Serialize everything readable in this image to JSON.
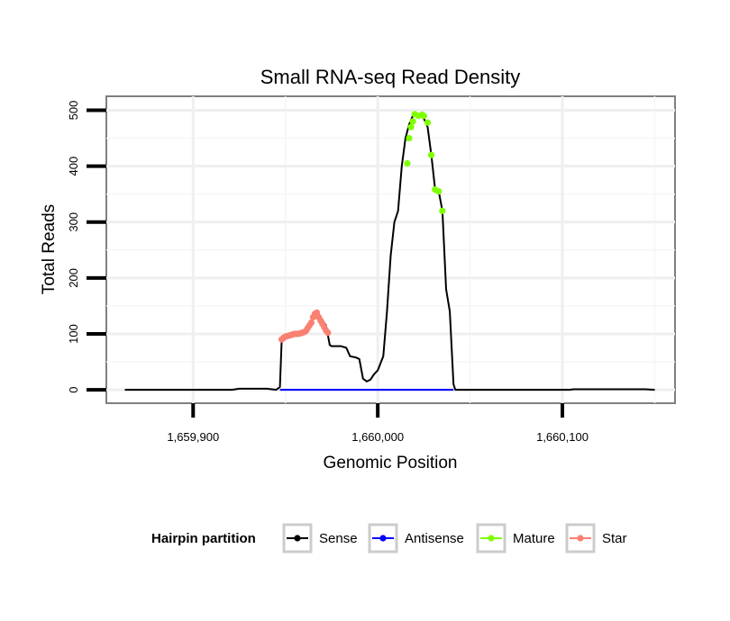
{
  "chart_data": {
    "type": "line",
    "title": "Small RNA-seq Read Density",
    "xlabel": "Genomic Position",
    "ylabel": "Total Reads",
    "xlim": [
      1659853,
      1660161
    ],
    "ylim": [
      -24,
      525
    ],
    "x_ticks": [
      {
        "value": 1659900,
        "label": "1,659,900"
      },
      {
        "value": 1660000,
        "label": "1,660,000"
      },
      {
        "value": 1660100,
        "label": "1,660,100"
      }
    ],
    "y_ticks": [
      {
        "value": 0,
        "label": "0"
      },
      {
        "value": 100,
        "label": "100"
      },
      {
        "value": 200,
        "label": "200"
      },
      {
        "value": 300,
        "label": "300"
      },
      {
        "value": 400,
        "label": "400"
      },
      {
        "value": 500,
        "label": "500"
      }
    ],
    "grid": true,
    "legend": {
      "title": "Hairpin partition",
      "position": "bottom",
      "entries": [
        {
          "label": "Sense",
          "color": "#000000"
        },
        {
          "label": "Antisense",
          "color": "#0000ff"
        },
        {
          "label": "Mature",
          "color": "#7fff00"
        },
        {
          "label": "Star",
          "color": "#fa8072"
        }
      ]
    },
    "series": [
      {
        "name": "Sense",
        "color": "#000000",
        "kind": "line",
        "points": [
          [
            1659863,
            0
          ],
          [
            1659878,
            0
          ],
          [
            1659893,
            0
          ],
          [
            1659908,
            0
          ],
          [
            1659921,
            0
          ],
          [
            1659925,
            2
          ],
          [
            1659940,
            2
          ],
          [
            1659945,
            0
          ],
          [
            1659947,
            5
          ],
          [
            1659948,
            90
          ],
          [
            1659950,
            95
          ],
          [
            1659955,
            100
          ],
          [
            1659960,
            103
          ],
          [
            1659963,
            115
          ],
          [
            1659965,
            128
          ],
          [
            1659967,
            138
          ],
          [
            1659970,
            125
          ],
          [
            1659972,
            115
          ],
          [
            1659974,
            80
          ],
          [
            1659975,
            78
          ],
          [
            1659980,
            78
          ],
          [
            1659983,
            75
          ],
          [
            1659985,
            60
          ],
          [
            1659988,
            58
          ],
          [
            1659990,
            55
          ],
          [
            1659992,
            20
          ],
          [
            1659994,
            15
          ],
          [
            1659996,
            18
          ],
          [
            1659998,
            28
          ],
          [
            1660000,
            35
          ],
          [
            1660003,
            60
          ],
          [
            1660005,
            140
          ],
          [
            1660007,
            240
          ],
          [
            1660009,
            300
          ],
          [
            1660011,
            320
          ],
          [
            1660013,
            400
          ],
          [
            1660015,
            450
          ],
          [
            1660017,
            475
          ],
          [
            1660019,
            490
          ],
          [
            1660021,
            493
          ],
          [
            1660023,
            490
          ],
          [
            1660025,
            485
          ],
          [
            1660027,
            470
          ],
          [
            1660029,
            420
          ],
          [
            1660031,
            360
          ],
          [
            1660033,
            355
          ],
          [
            1660035,
            320
          ],
          [
            1660037,
            180
          ],
          [
            1660039,
            140
          ],
          [
            1660041,
            10
          ],
          [
            1660042,
            0
          ],
          [
            1660060,
            0
          ],
          [
            1660075,
            0
          ],
          [
            1660090,
            0
          ],
          [
            1660104,
            0
          ],
          [
            1660106,
            1
          ],
          [
            1660145,
            1
          ],
          [
            1660150,
            0
          ]
        ]
      },
      {
        "name": "Antisense",
        "color": "#0000ff",
        "kind": "line",
        "points": [
          [
            1659947,
            0
          ],
          [
            1660041,
            0
          ]
        ]
      },
      {
        "name": "Mature",
        "color": "#7fff00",
        "kind": "points",
        "points": [
          [
            1660016,
            405
          ],
          [
            1660017,
            450
          ],
          [
            1660018,
            470
          ],
          [
            1660019,
            480
          ],
          [
            1660020,
            493
          ],
          [
            1660022,
            490
          ],
          [
            1660024,
            492
          ],
          [
            1660025,
            490
          ],
          [
            1660027,
            478
          ],
          [
            1660029,
            420
          ],
          [
            1660031,
            358
          ],
          [
            1660033,
            355
          ],
          [
            1660035,
            320
          ]
        ]
      },
      {
        "name": "Star",
        "color": "#fa8072",
        "kind": "points",
        "points": [
          [
            1659948,
            90
          ],
          [
            1659949,
            93
          ],
          [
            1659950,
            95
          ],
          [
            1659951,
            96
          ],
          [
            1659952,
            97
          ],
          [
            1659953,
            98
          ],
          [
            1659954,
            99
          ],
          [
            1659955,
            100
          ],
          [
            1659956,
            100
          ],
          [
            1659957,
            100
          ],
          [
            1659958,
            101
          ],
          [
            1659959,
            102
          ],
          [
            1659960,
            103
          ],
          [
            1659961,
            105
          ],
          [
            1659962,
            110
          ],
          [
            1659963,
            115
          ],
          [
            1659964,
            120
          ],
          [
            1659965,
            130
          ],
          [
            1659966,
            136
          ],
          [
            1659967,
            138
          ],
          [
            1659968,
            130
          ],
          [
            1659969,
            124
          ],
          [
            1659970,
            118
          ],
          [
            1659971,
            112
          ],
          [
            1659972,
            106
          ],
          [
            1659973,
            102
          ]
        ]
      }
    ]
  }
}
